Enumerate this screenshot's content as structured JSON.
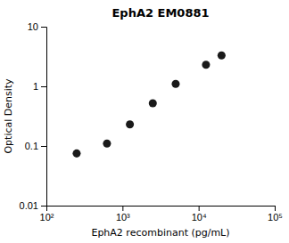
{
  "chart_data": {
    "type": "scatter",
    "title": "EphA2 EM0881",
    "xlabel": "EphA2 recombinant (pg/mL)",
    "ylabel": "Optical Density",
    "x": [
      250,
      625,
      1250,
      2500,
      5000,
      12500,
      20000
    ],
    "values": [
      0.075,
      0.11,
      0.23,
      0.52,
      1.1,
      2.3,
      3.3
    ],
    "xlim": [
      100,
      100000
    ],
    "ylim": [
      0.01,
      10
    ],
    "xticks": [
      {
        "value": 100,
        "label": "10²"
      },
      {
        "value": 1000,
        "label": "10³"
      },
      {
        "value": 10000,
        "label": "10⁴"
      },
      {
        "value": 100000,
        "label": "10⁵"
      }
    ],
    "yticks": [
      0.01,
      0.1,
      1,
      10
    ],
    "log": true,
    "color": "#1a1a1a",
    "marker": "circle"
  }
}
